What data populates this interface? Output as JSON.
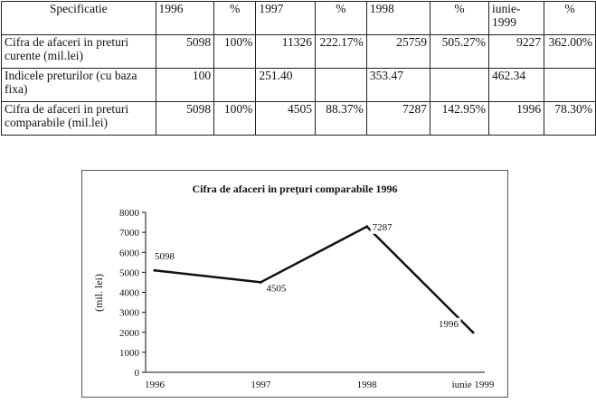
{
  "table": {
    "headers": [
      "Specificatie",
      "1996",
      "%",
      "1997",
      "%",
      "1998",
      "%",
      "iunie-1999",
      "%"
    ],
    "rows": [
      {
        "label": "Cifra de afaceri in preturi curente (mil.lei)",
        "cells": [
          "5098",
          "100%",
          "11326",
          "222.17%",
          "25759",
          "505.27%",
          "9227",
          "362.00%"
        ]
      },
      {
        "label": "Indicele preturilor (cu baza fixa)",
        "cells": [
          "100",
          "",
          "251.40",
          "",
          "353.47",
          "",
          "462.34",
          ""
        ]
      },
      {
        "label": "Cifra de afaceri in preturi comparabile (mil.lei)",
        "cells": [
          "5098",
          "100%",
          "4505",
          "88.37%",
          "7287",
          "142.95%",
          "1996",
          "78.30%"
        ]
      }
    ]
  },
  "chart_data": {
    "type": "line",
    "title": "Cifra de afaceri in preţuri comparabile 1996",
    "ylabel": "(mil. lei)",
    "xlabel": "",
    "categories": [
      "1996",
      "1997",
      "1998",
      "iunie 1999"
    ],
    "series": [
      {
        "values": [
          5098,
          4505,
          7287,
          1996
        ]
      }
    ],
    "data_labels": [
      "5098",
      "4505",
      "7287",
      "1996"
    ],
    "ylim": [
      0,
      8000
    ],
    "yticks": [
      "0",
      "1000",
      "2000",
      "3000",
      "4000",
      "5000",
      "6000",
      "7000",
      "8000"
    ],
    "grid": false,
    "legend": "none",
    "line_color": "#111111"
  }
}
